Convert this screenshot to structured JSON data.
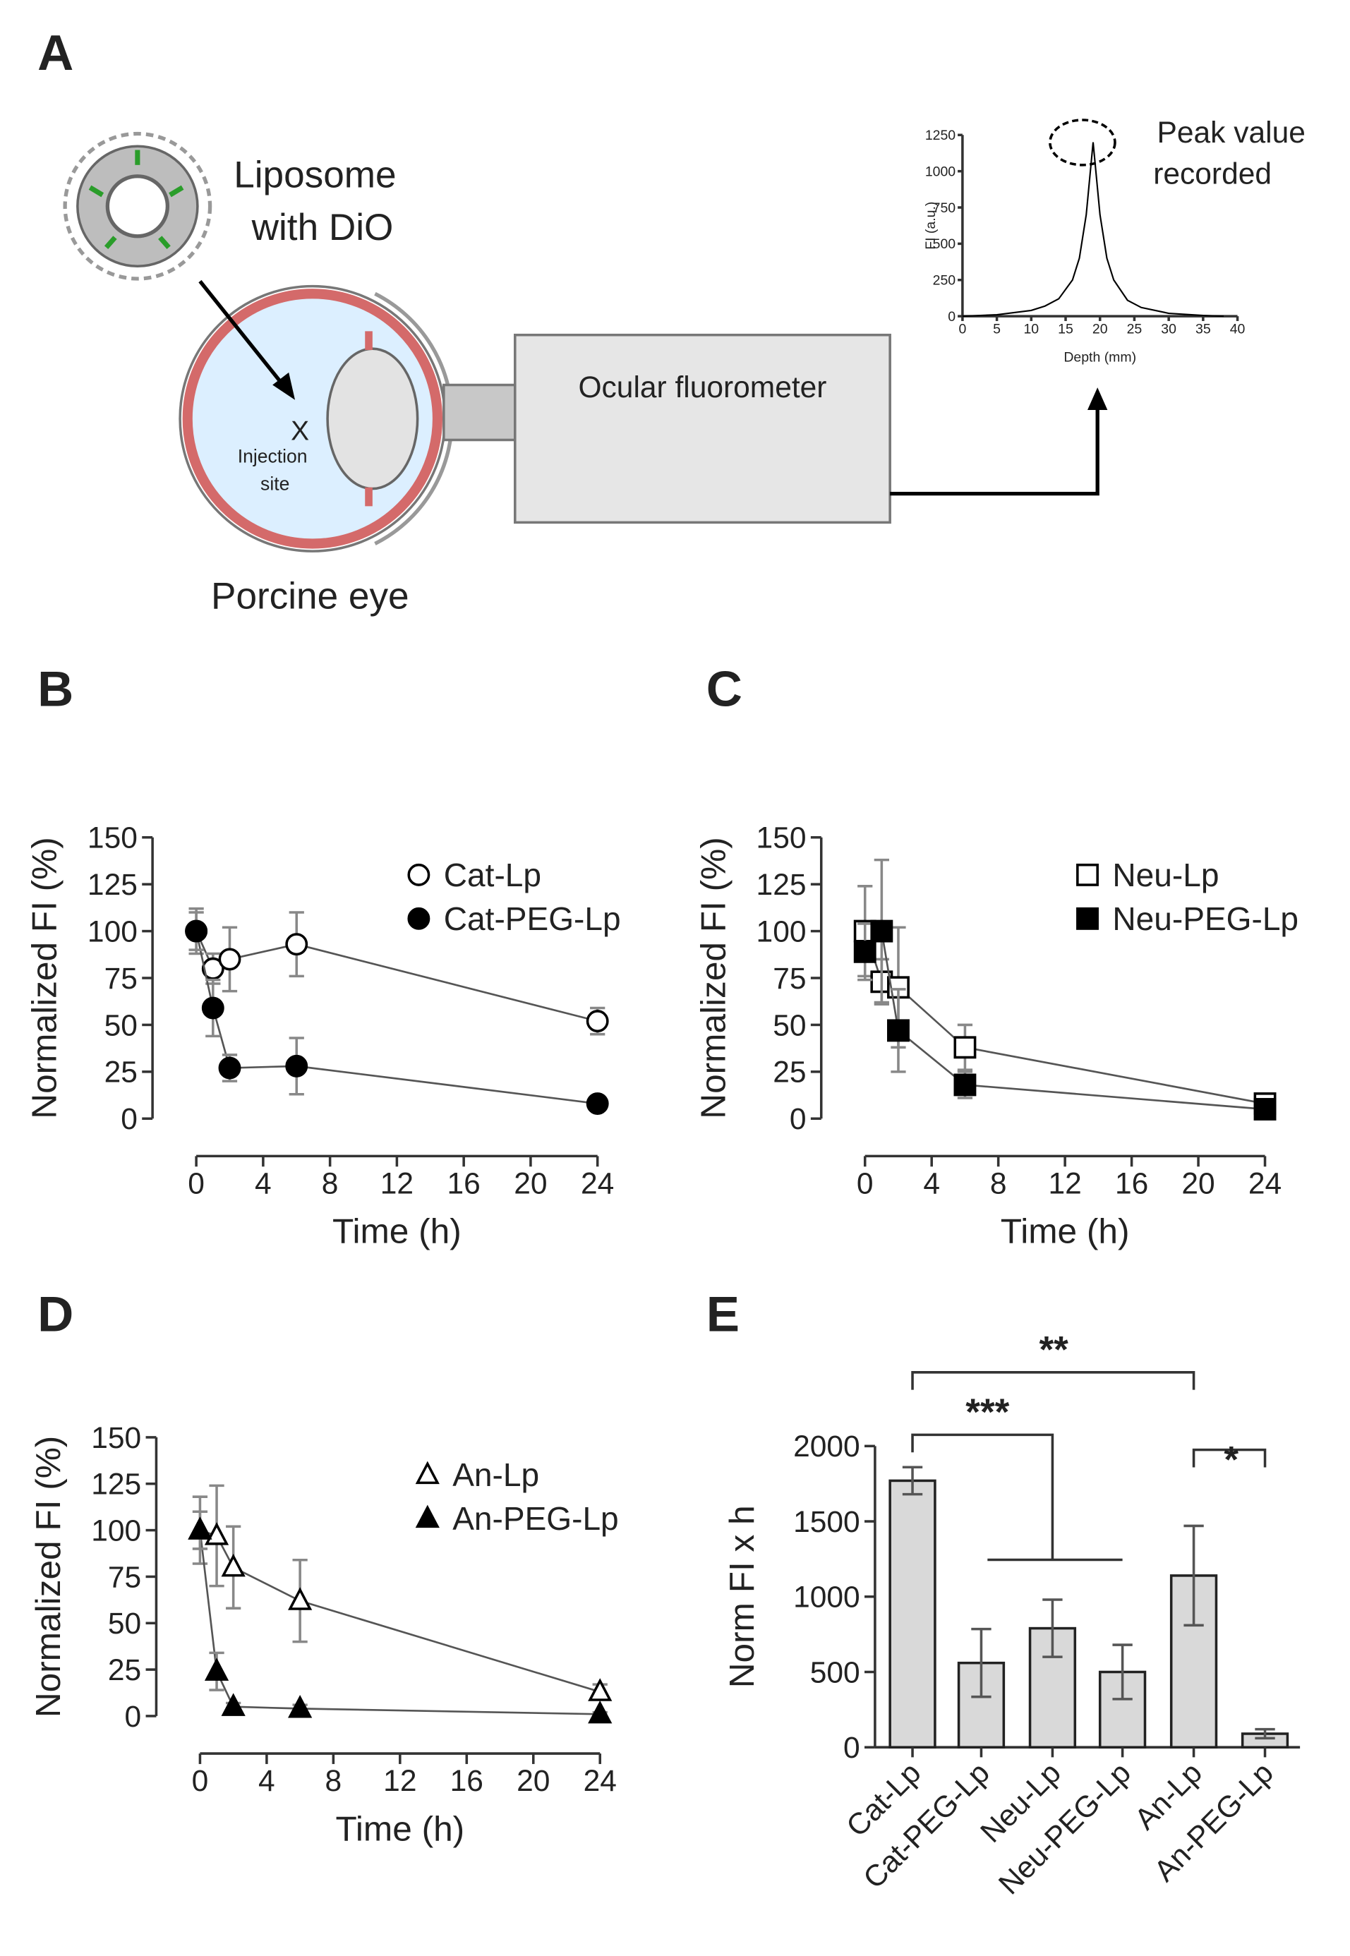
{
  "diagram": {
    "panel_label": "A",
    "liposome_label": [
      "Liposome",
      "with DiO"
    ],
    "injection_mark": "X",
    "injection_label": [
      "Injection",
      "site"
    ],
    "eye_label": "Porcine eye",
    "device_label": "Ocular fluorometer",
    "peak_label": [
      "Peak value",
      "recorded"
    ]
  },
  "chart_data": [
    {
      "type": "line",
      "xlabel": "Depth (mm)",
      "ylabel": "FI (a.u.)",
      "x": [
        0,
        5,
        10,
        12,
        14,
        16,
        17,
        18,
        19,
        20,
        21,
        22,
        24,
        26,
        30,
        35,
        38
      ],
      "series": [
        {
          "color": "#000000",
          "values": [
            0,
            10,
            40,
            70,
            120,
            250,
            400,
            700,
            1200,
            700,
            400,
            250,
            110,
            60,
            20,
            5,
            0
          ]
        }
      ],
      "xlim": [
        0,
        40
      ],
      "xticks": [
        0,
        5,
        10,
        15,
        20,
        25,
        30,
        35,
        40
      ],
      "ylim": [
        0,
        1250
      ],
      "yticks": [
        0,
        250,
        500,
        750,
        1000,
        1250
      ]
    },
    {
      "type": "line",
      "panel_label": "B",
      "xlabel": "Time (h)",
      "ylabel": "Normalized FI (%)",
      "x": [
        0,
        1,
        2,
        6,
        24
      ],
      "series": [
        {
          "name": "Cat-Lp",
          "color": "#000000",
          "marker": "circle",
          "filled": false,
          "values": [
            100,
            80,
            85,
            93,
            52
          ],
          "errors": [
            12,
            8,
            17,
            17,
            7
          ]
        },
        {
          "name": "Cat-PEG-Lp",
          "color": "#000000",
          "marker": "circle",
          "filled": true,
          "values": [
            100,
            59,
            27,
            28,
            8
          ],
          "errors": [
            10,
            15,
            7,
            15,
            2
          ]
        }
      ],
      "xlim": [
        0,
        24
      ],
      "xticks": [
        0,
        4,
        8,
        12,
        16,
        20,
        24
      ],
      "ylim": [
        0,
        150
      ],
      "yticks": [
        0,
        25,
        50,
        75,
        100,
        125,
        150
      ]
    },
    {
      "type": "line",
      "panel_label": "C",
      "xlabel": "Time (h)",
      "ylabel": "Normalized FI (%)",
      "x": [
        0,
        1,
        2,
        6,
        24
      ],
      "series": [
        {
          "name": "Neu-Lp",
          "color": "#000000",
          "marker": "square",
          "filled": false,
          "values": [
            100,
            73,
            70,
            38,
            8
          ],
          "errors": [
            24,
            12,
            32,
            12,
            3
          ]
        },
        {
          "name": "Neu-PEG-Lp",
          "color": "#000000",
          "marker": "square",
          "filled": true,
          "values": [
            89,
            100,
            47,
            18,
            5
          ],
          "errors": [
            15,
            38,
            22,
            7,
            2
          ]
        }
      ],
      "xlim": [
        0,
        24
      ],
      "xticks": [
        0,
        4,
        8,
        12,
        16,
        20,
        24
      ],
      "ylim": [
        0,
        150
      ],
      "yticks": [
        0,
        25,
        50,
        75,
        100,
        125,
        150
      ]
    },
    {
      "type": "line",
      "panel_label": "D",
      "xlabel": "Time (h)",
      "ylabel": "Normalized FI (%)",
      "x": [
        0,
        1,
        2,
        6,
        24
      ],
      "series": [
        {
          "name": "An-Lp",
          "color": "#000000",
          "marker": "triangle",
          "filled": false,
          "values": [
            100,
            97,
            80,
            62,
            13
          ],
          "errors": [
            18,
            27,
            22,
            22,
            4
          ]
        },
        {
          "name": "An-PEG-Lp",
          "color": "#000000",
          "marker": "triangle",
          "filled": true,
          "values": [
            100,
            24,
            5,
            4,
            1
          ],
          "errors": [
            10,
            10,
            2,
            2,
            1
          ]
        }
      ],
      "xlim": [
        0,
        24
      ],
      "xticks": [
        0,
        4,
        8,
        12,
        16,
        20,
        24
      ],
      "ylim": [
        0,
        150
      ],
      "yticks": [
        0,
        25,
        50,
        75,
        100,
        125,
        150
      ]
    },
    {
      "type": "bar",
      "panel_label": "E",
      "ylabel": "Norm FI x h",
      "categories": [
        "Cat-Lp",
        "Cat-PEG-Lp",
        "Neu-Lp",
        "Neu-PEG-Lp",
        "An-Lp",
        "An-PEG-Lp"
      ],
      "values": [
        1770,
        560,
        790,
        500,
        1140,
        90
      ],
      "errors": [
        90,
        225,
        190,
        180,
        330,
        30
      ],
      "color": "#d9d9d9",
      "ylim": [
        0,
        2000
      ],
      "yticks": [
        0,
        500,
        1000,
        1500,
        2000
      ],
      "annotations": [
        "**",
        "***",
        "*"
      ]
    }
  ]
}
